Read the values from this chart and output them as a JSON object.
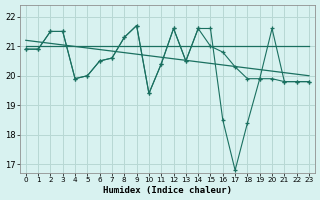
{
  "xlabel": "Humidex (Indice chaleur)",
  "bg_color": "#d8f2f0",
  "grid_color": "#b8d8d4",
  "line_color": "#1a7060",
  "xlim": [
    -0.5,
    23.5
  ],
  "ylim": [
    16.7,
    22.4
  ],
  "yticks": [
    17,
    18,
    19,
    20,
    21,
    22
  ],
  "xticks": [
    0,
    1,
    2,
    3,
    4,
    5,
    6,
    7,
    8,
    9,
    10,
    11,
    12,
    13,
    14,
    15,
    16,
    17,
    18,
    19,
    20,
    21,
    22,
    23
  ],
  "series_deep": {
    "x": [
      0,
      1,
      2,
      3,
      4,
      5,
      6,
      7,
      8,
      9,
      10,
      11,
      12,
      13,
      14,
      15,
      16,
      17,
      18,
      19,
      20,
      21,
      22,
      23
    ],
    "y": [
      20.9,
      20.9,
      21.5,
      21.5,
      19.9,
      20.0,
      20.5,
      20.6,
      21.3,
      21.7,
      19.4,
      20.4,
      21.6,
      20.5,
      21.6,
      21.6,
      18.5,
      16.8,
      18.4,
      19.9,
      21.6,
      19.8,
      19.8,
      19.8
    ]
  },
  "series_peak": {
    "x": [
      0,
      1,
      2,
      3,
      4,
      5,
      6,
      7,
      8,
      9,
      10,
      11,
      12,
      13,
      14,
      15,
      16,
      17,
      18,
      19,
      20,
      21,
      22,
      23
    ],
    "y": [
      20.9,
      20.9,
      21.5,
      21.5,
      19.9,
      20.0,
      20.5,
      20.6,
      21.3,
      21.7,
      19.4,
      20.4,
      21.6,
      20.5,
      21.6,
      21.0,
      20.8,
      20.3,
      19.9,
      19.9,
      19.9,
      19.8,
      19.8,
      19.8
    ]
  },
  "trend_flat": {
    "x": [
      0,
      23
    ],
    "y": [
      21.0,
      21.0
    ]
  },
  "trend_down": {
    "x": [
      0,
      23
    ],
    "y": [
      21.2,
      20.0
    ]
  }
}
